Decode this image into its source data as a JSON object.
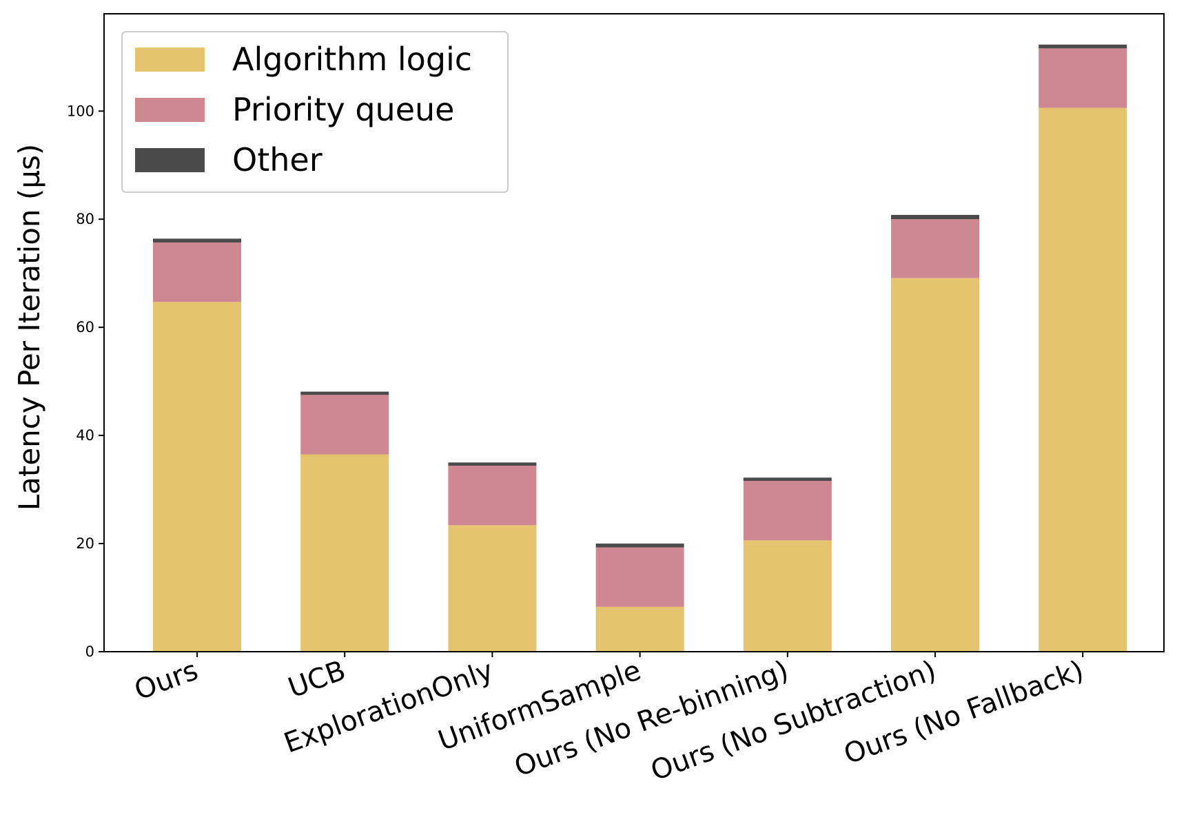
{
  "chart_data": {
    "type": "bar",
    "stacked": true,
    "title": "",
    "xlabel": "",
    "ylabel": "Latency Per Iteration (µs)",
    "ylim": [
      0,
      118
    ],
    "yticks": [
      0,
      20,
      40,
      60,
      80,
      100
    ],
    "grid": false,
    "legend_position": "top-left",
    "categories": [
      "Ours",
      "UCB",
      "ExplorationOnly",
      "UniformSample",
      "Ours (No Re-binning)",
      "Ours (No Subtraction)",
      "Ours (No Fallback)"
    ],
    "series": [
      {
        "name": "Algorithm logic",
        "color": "#e6c36f",
        "values": [
          64.7,
          36.5,
          23.4,
          8.3,
          20.6,
          69.1,
          100.6
        ]
      },
      {
        "name": "Priority queue",
        "color": "#cf8792",
        "values": [
          11.0,
          11.0,
          11.0,
          11.0,
          11.0,
          10.9,
          11.0
        ]
      },
      {
        "name": "Other",
        "color": "#4a4a4a",
        "values": [
          0.7,
          0.6,
          0.6,
          0.7,
          0.6,
          0.8,
          0.7
        ]
      }
    ]
  }
}
